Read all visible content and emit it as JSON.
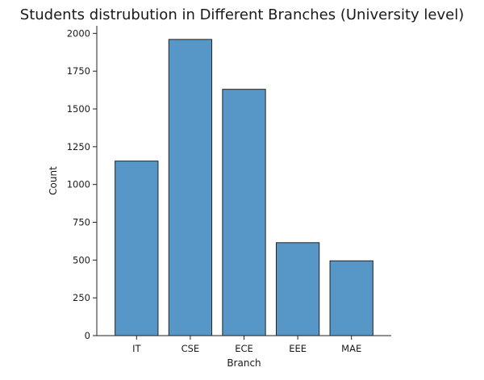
{
  "chart_data": {
    "type": "bar",
    "title": "Students distrubution in Different Branches (University level)",
    "xlabel": "Branch",
    "ylabel": "Count",
    "categories": [
      "IT",
      "CSE",
      "ECE",
      "EEE",
      "MAE"
    ],
    "values": [
      1155,
      1960,
      1630,
      615,
      495
    ],
    "ylim": [
      0,
      2050
    ],
    "yticks": [
      0,
      250,
      500,
      750,
      1000,
      1250,
      1500,
      1750,
      2000
    ],
    "grid": false,
    "legend": "none",
    "bar_color": "#5797c7",
    "edge_color": "#222222"
  }
}
